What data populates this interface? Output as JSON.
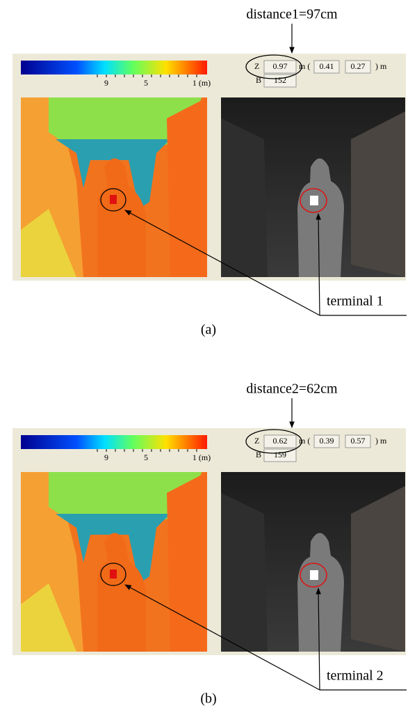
{
  "panels": [
    {
      "distance_label": "distance1=97cm",
      "colorbar_ticks": [
        "9",
        "5",
        "1 (m)"
      ],
      "z_label": "Z",
      "z_values": [
        "0.97",
        "0.41",
        "0.27"
      ],
      "unit_open": "m (",
      "unit_close": ") m",
      "b_label": "B",
      "b_value": "152",
      "terminal_label": "terminal 1",
      "caption": "(a)"
    },
    {
      "distance_label": "distance2=62cm",
      "colorbar_ticks": [
        "9",
        "5",
        "1 (m)"
      ],
      "z_label": "Z",
      "z_values": [
        "0.62",
        "0.39",
        "0.57"
      ],
      "unit_open": "m (",
      "unit_close": ") m",
      "b_label": "B",
      "b_value": "159",
      "terminal_label": "terminal 2",
      "caption": "(b)"
    }
  ]
}
